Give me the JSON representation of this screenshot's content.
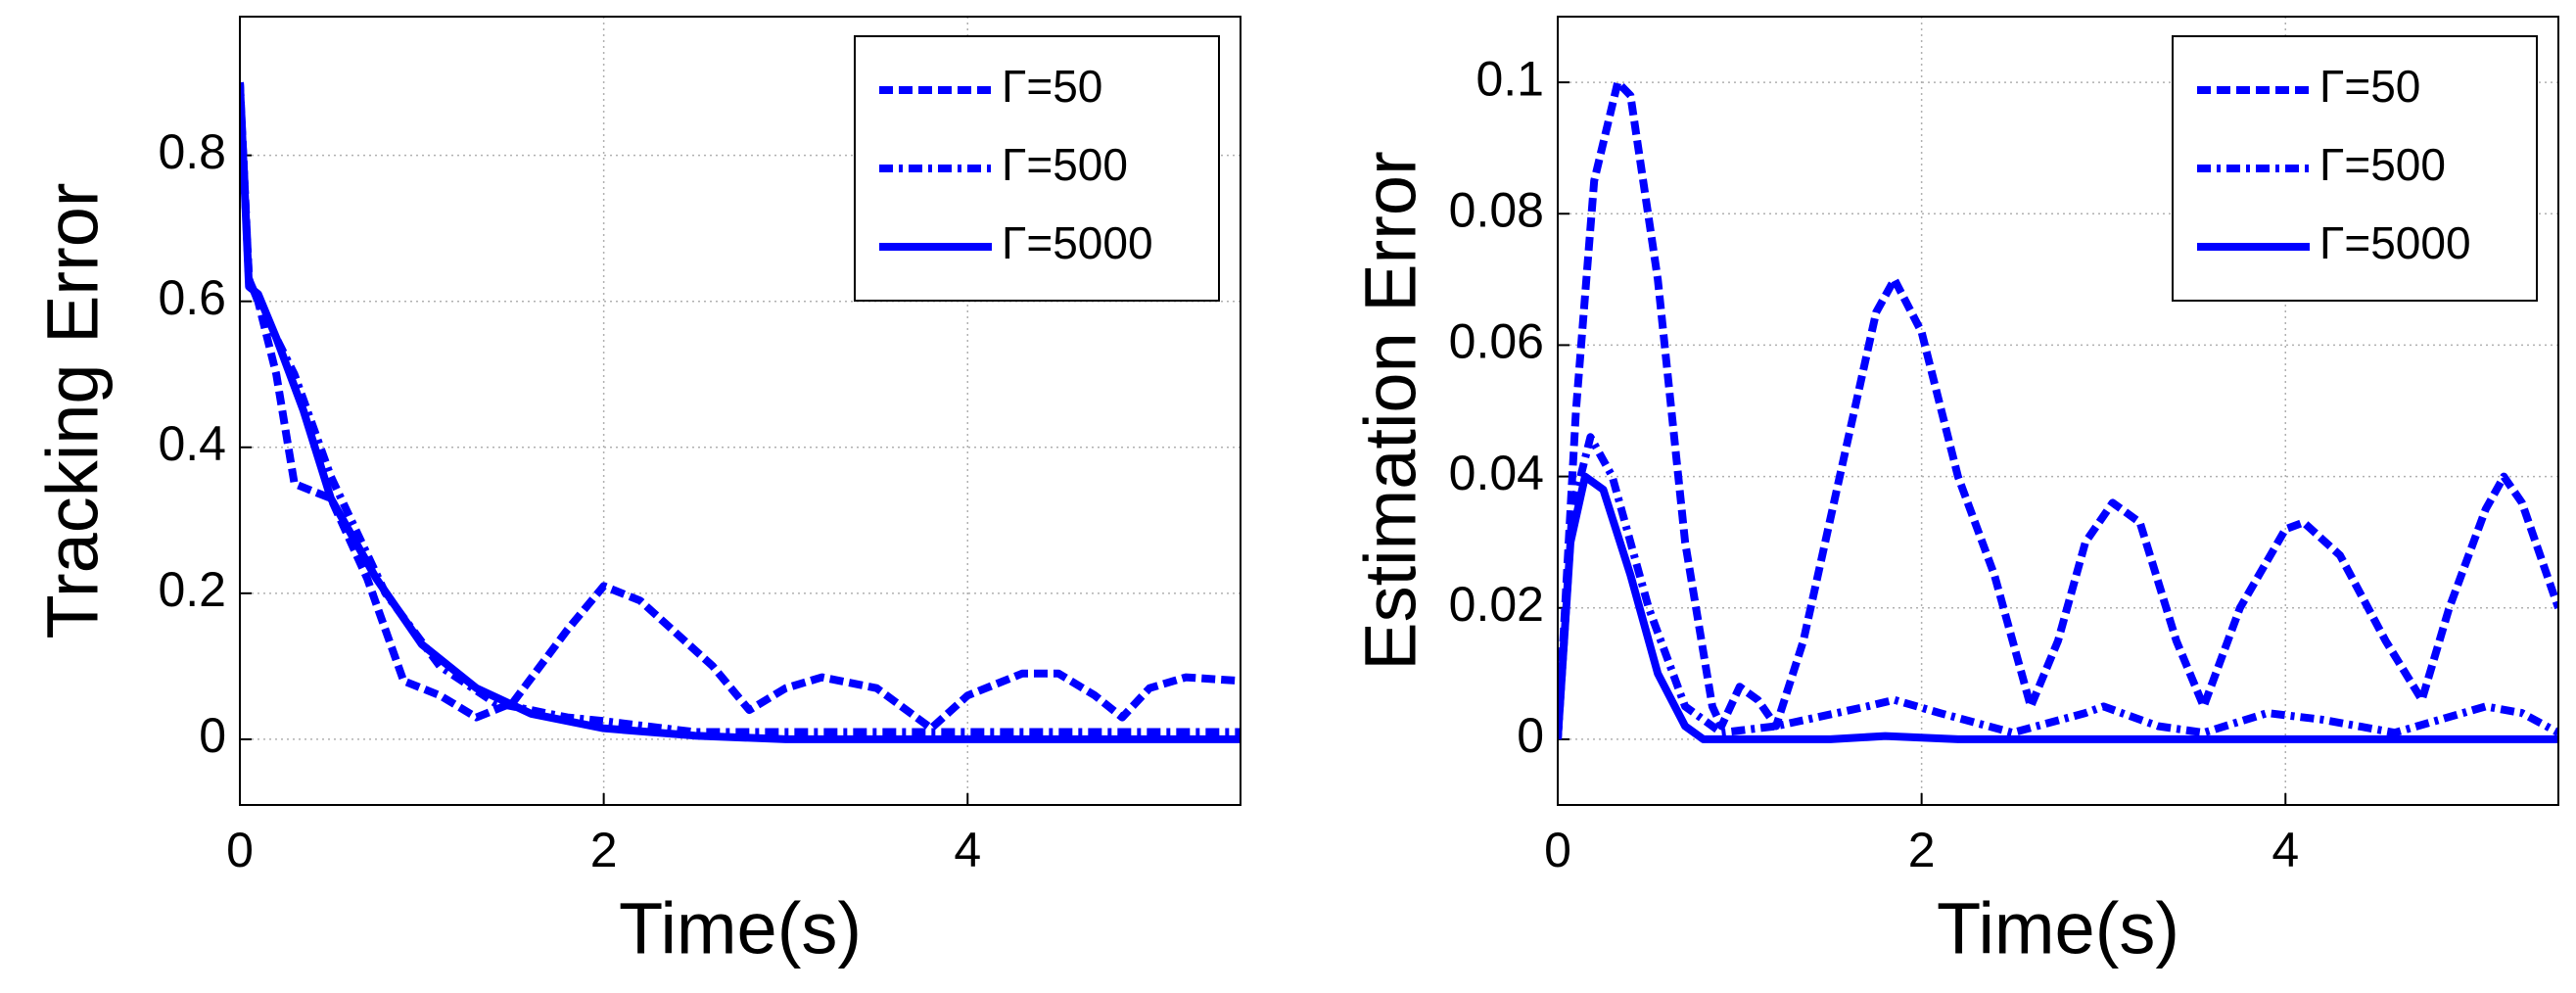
{
  "chart_data": [
    {
      "type": "line",
      "x_label": "Time(s)",
      "y_label": "Tracking Error",
      "xlim": [
        0,
        5.5
      ],
      "ylim": [
        -0.09,
        0.99
      ],
      "xticks": [
        0,
        2,
        4
      ],
      "yticks": [
        0,
        0.2,
        0.4,
        0.6,
        0.8
      ],
      "grid": true,
      "legend": "upper right",
      "series": [
        {
          "name": "Γ=50",
          "color": "#0000ff",
          "style": "dashed",
          "x": [
            0,
            0.05,
            0.1,
            0.2,
            0.3,
            0.5,
            0.7,
            0.9,
            1.1,
            1.3,
            1.5,
            1.8,
            2.0,
            2.2,
            2.6,
            2.8,
            3.0,
            3.2,
            3.5,
            3.8,
            4.0,
            4.3,
            4.5,
            4.7,
            4.85,
            5.0,
            5.2,
            5.5
          ],
          "values": [
            0.9,
            0.63,
            0.6,
            0.5,
            0.35,
            0.33,
            0.22,
            0.08,
            0.06,
            0.03,
            0.05,
            0.15,
            0.21,
            0.19,
            0.1,
            0.04,
            0.07,
            0.085,
            0.07,
            0.015,
            0.06,
            0.09,
            0.09,
            0.06,
            0.03,
            0.07,
            0.085,
            0.08
          ]
        },
        {
          "name": "Γ=500",
          "color": "#0000ff",
          "style": "dashdot",
          "x": [
            0,
            0.05,
            0.1,
            0.3,
            0.5,
            0.8,
            1.1,
            1.4,
            1.8,
            2.0,
            2.5,
            3.5,
            4.5,
            5.5
          ],
          "values": [
            0.9,
            0.63,
            0.6,
            0.5,
            0.36,
            0.2,
            0.1,
            0.05,
            0.03,
            0.025,
            0.01,
            0.01,
            0.01,
            0.01
          ]
        },
        {
          "name": "Γ=5000",
          "color": "#0000ff",
          "style": "solid",
          "x": [
            0,
            0.05,
            0.1,
            0.2,
            0.35,
            0.5,
            0.75,
            1.0,
            1.3,
            1.6,
            2.0,
            2.5,
            3.0,
            4.0,
            5.5
          ],
          "values": [
            0.9,
            0.62,
            0.61,
            0.55,
            0.45,
            0.33,
            0.22,
            0.13,
            0.07,
            0.035,
            0.015,
            0.005,
            0,
            0,
            0
          ]
        }
      ]
    },
    {
      "type": "line",
      "x_label": "Time(s)",
      "y_label": "Estimation Error",
      "xlim": [
        0,
        5.5
      ],
      "ylim": [
        -0.01,
        0.11
      ],
      "xticks": [
        0,
        2,
        4
      ],
      "yticks": [
        0,
        0.02,
        0.04,
        0.06,
        0.08,
        0.1
      ],
      "grid": true,
      "legend": "upper right",
      "series": [
        {
          "name": "Γ=50",
          "color": "#0000ff",
          "style": "dashed",
          "x": [
            0,
            0.1,
            0.2,
            0.33,
            0.4,
            0.55,
            0.7,
            0.85,
            0.9,
            1.0,
            1.1,
            1.2,
            1.35,
            1.55,
            1.75,
            1.85,
            2.0,
            2.2,
            2.4,
            2.6,
            2.75,
            2.9,
            3.05,
            3.2,
            3.4,
            3.55,
            3.75,
            4.0,
            4.1,
            4.3,
            4.55,
            4.75,
            4.9,
            5.1,
            5.2,
            5.3,
            5.5
          ],
          "values": [
            0,
            0.05,
            0.085,
            0.1,
            0.098,
            0.07,
            0.03,
            0.005,
            0.002,
            0.008,
            0.006,
            0.002,
            0.015,
            0.04,
            0.065,
            0.07,
            0.062,
            0.04,
            0.025,
            0.005,
            0.015,
            0.03,
            0.036,
            0.033,
            0.015,
            0.005,
            0.02,
            0.032,
            0.033,
            0.028,
            0.015,
            0.006,
            0.02,
            0.035,
            0.04,
            0.036,
            0.02
          ]
        },
        {
          "name": "Γ=500",
          "color": "#0000ff",
          "style": "dashdot",
          "x": [
            0,
            0.08,
            0.18,
            0.3,
            0.5,
            0.7,
            0.9,
            1.2,
            1.7,
            1.85,
            2.1,
            2.5,
            2.9,
            3.0,
            3.3,
            3.55,
            3.9,
            4.2,
            4.6,
            5.1,
            5.3,
            5.5
          ],
          "values": [
            0,
            0.035,
            0.046,
            0.04,
            0.02,
            0.005,
            0.001,
            0.002,
            0.005,
            0.006,
            0.004,
            0.001,
            0.004,
            0.005,
            0.002,
            0.001,
            0.004,
            0.003,
            0.001,
            0.005,
            0.004,
            0.001
          ]
        },
        {
          "name": "Γ=5000",
          "color": "#0000ff",
          "style": "solid",
          "x": [
            0,
            0.07,
            0.15,
            0.25,
            0.4,
            0.55,
            0.7,
            0.8,
            1.5,
            1.8,
            2.2,
            5.5
          ],
          "values": [
            0,
            0.03,
            0.04,
            0.038,
            0.025,
            0.01,
            0.002,
            0,
            0,
            0.0005,
            0,
            0
          ]
        }
      ]
    }
  ]
}
